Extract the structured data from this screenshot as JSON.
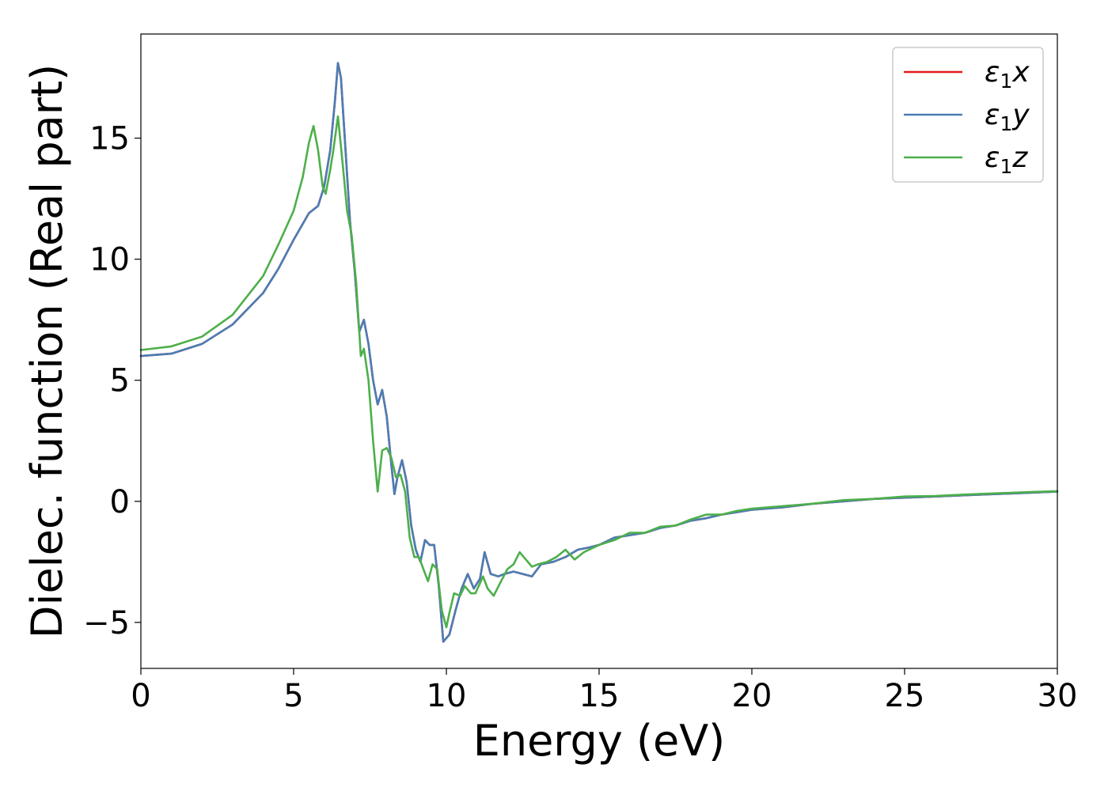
{
  "chart_data": {
    "type": "line",
    "xlabel": "Energy (eV)",
    "ylabel": "Dielec. function (Real part)",
    "xlim": [
      0,
      30
    ],
    "ylim": [
      -6.9,
      19.3
    ],
    "xticks": [
      0,
      5,
      10,
      15,
      20,
      25,
      30
    ],
    "xtick_labels": [
      "0",
      "5",
      "10",
      "15",
      "20",
      "25",
      "30"
    ],
    "yticks": [
      -5,
      0,
      5,
      10,
      15
    ],
    "ytick_labels": [
      "−5",
      "0",
      "5",
      "10",
      "15"
    ],
    "grid": false,
    "legend_position": "top-right",
    "series": [
      {
        "name": "ε1x",
        "legend": {
          "base": "ε",
          "sub": "1",
          "tail": "x"
        },
        "color": "#e41a1c",
        "points": [
          [
            0,
            6.0
          ],
          [
            1,
            6.1
          ],
          [
            2,
            6.5
          ],
          [
            3,
            7.3
          ],
          [
            4,
            8.6
          ],
          [
            4.5,
            9.6
          ],
          [
            5,
            10.8
          ],
          [
            5.5,
            11.9
          ],
          [
            5.8,
            12.2
          ],
          [
            6.0,
            13.0
          ],
          [
            6.2,
            14.5
          ],
          [
            6.35,
            16.5
          ],
          [
            6.45,
            18.1
          ],
          [
            6.55,
            17.5
          ],
          [
            6.7,
            14.5
          ],
          [
            6.85,
            11.5
          ],
          [
            7.0,
            9.5
          ],
          [
            7.15,
            7.0
          ],
          [
            7.3,
            7.5
          ],
          [
            7.45,
            6.5
          ],
          [
            7.6,
            5.0
          ],
          [
            7.75,
            4.0
          ],
          [
            7.9,
            4.6
          ],
          [
            8.05,
            3.5
          ],
          [
            8.2,
            1.5
          ],
          [
            8.3,
            0.3
          ],
          [
            8.4,
            1.0
          ],
          [
            8.55,
            1.7
          ],
          [
            8.7,
            0.8
          ],
          [
            8.85,
            -1.0
          ],
          [
            9.0,
            -2.0
          ],
          [
            9.15,
            -2.5
          ],
          [
            9.3,
            -1.6
          ],
          [
            9.45,
            -1.8
          ],
          [
            9.6,
            -1.8
          ],
          [
            9.75,
            -3.5
          ],
          [
            9.9,
            -5.8
          ],
          [
            10.1,
            -5.5
          ],
          [
            10.3,
            -4.5
          ],
          [
            10.5,
            -3.6
          ],
          [
            10.7,
            -3.0
          ],
          [
            10.9,
            -3.6
          ],
          [
            11.1,
            -3.2
          ],
          [
            11.25,
            -2.1
          ],
          [
            11.45,
            -3.0
          ],
          [
            11.7,
            -3.1
          ],
          [
            11.9,
            -3.0
          ],
          [
            12.2,
            -2.9
          ],
          [
            12.5,
            -3.0
          ],
          [
            12.8,
            -3.1
          ],
          [
            13.1,
            -2.6
          ],
          [
            13.5,
            -2.5
          ],
          [
            13.9,
            -2.3
          ],
          [
            14.3,
            -2.0
          ],
          [
            14.7,
            -1.9
          ],
          [
            15.0,
            -1.8
          ],
          [
            15.5,
            -1.5
          ],
          [
            16.0,
            -1.4
          ],
          [
            16.5,
            -1.3
          ],
          [
            17.0,
            -1.1
          ],
          [
            17.5,
            -1.0
          ],
          [
            18.0,
            -0.8
          ],
          [
            18.5,
            -0.7
          ],
          [
            19.0,
            -0.55
          ],
          [
            19.5,
            -0.45
          ],
          [
            20.0,
            -0.35
          ],
          [
            21.0,
            -0.25
          ],
          [
            22.0,
            -0.1
          ],
          [
            23.0,
            0.0
          ],
          [
            24.0,
            0.1
          ],
          [
            25.0,
            0.15
          ],
          [
            26.0,
            0.2
          ],
          [
            27.0,
            0.25
          ],
          [
            28.0,
            0.3
          ],
          [
            29.0,
            0.35
          ],
          [
            30.0,
            0.4
          ]
        ]
      },
      {
        "name": "ε1y",
        "legend": {
          "base": "ε",
          "sub": "1",
          "tail": "y"
        },
        "color": "#4a7eb5",
        "points": [
          [
            0,
            6.0
          ],
          [
            1,
            6.1
          ],
          [
            2,
            6.5
          ],
          [
            3,
            7.3
          ],
          [
            4,
            8.6
          ],
          [
            4.5,
            9.6
          ],
          [
            5,
            10.8
          ],
          [
            5.5,
            11.9
          ],
          [
            5.8,
            12.2
          ],
          [
            6.0,
            13.0
          ],
          [
            6.2,
            14.5
          ],
          [
            6.35,
            16.5
          ],
          [
            6.45,
            18.1
          ],
          [
            6.55,
            17.5
          ],
          [
            6.7,
            14.5
          ],
          [
            6.85,
            11.5
          ],
          [
            7.0,
            9.5
          ],
          [
            7.15,
            7.0
          ],
          [
            7.3,
            7.5
          ],
          [
            7.45,
            6.5
          ],
          [
            7.6,
            5.0
          ],
          [
            7.75,
            4.0
          ],
          [
            7.9,
            4.6
          ],
          [
            8.05,
            3.5
          ],
          [
            8.2,
            1.5
          ],
          [
            8.3,
            0.3
          ],
          [
            8.4,
            1.0
          ],
          [
            8.55,
            1.7
          ],
          [
            8.7,
            0.8
          ],
          [
            8.85,
            -1.0
          ],
          [
            9.0,
            -2.0
          ],
          [
            9.15,
            -2.5
          ],
          [
            9.3,
            -1.6
          ],
          [
            9.45,
            -1.8
          ],
          [
            9.6,
            -1.8
          ],
          [
            9.75,
            -3.5
          ],
          [
            9.9,
            -5.8
          ],
          [
            10.1,
            -5.5
          ],
          [
            10.3,
            -4.5
          ],
          [
            10.5,
            -3.6
          ],
          [
            10.7,
            -3.0
          ],
          [
            10.9,
            -3.6
          ],
          [
            11.1,
            -3.2
          ],
          [
            11.25,
            -2.1
          ],
          [
            11.45,
            -3.0
          ],
          [
            11.7,
            -3.1
          ],
          [
            11.9,
            -3.0
          ],
          [
            12.2,
            -2.9
          ],
          [
            12.5,
            -3.0
          ],
          [
            12.8,
            -3.1
          ],
          [
            13.1,
            -2.6
          ],
          [
            13.5,
            -2.5
          ],
          [
            13.9,
            -2.3
          ],
          [
            14.3,
            -2.0
          ],
          [
            14.7,
            -1.9
          ],
          [
            15.0,
            -1.8
          ],
          [
            15.5,
            -1.5
          ],
          [
            16.0,
            -1.4
          ],
          [
            16.5,
            -1.3
          ],
          [
            17.0,
            -1.1
          ],
          [
            17.5,
            -1.0
          ],
          [
            18.0,
            -0.8
          ],
          [
            18.5,
            -0.7
          ],
          [
            19.0,
            -0.55
          ],
          [
            19.5,
            -0.45
          ],
          [
            20.0,
            -0.35
          ],
          [
            21.0,
            -0.25
          ],
          [
            22.0,
            -0.1
          ],
          [
            23.0,
            0.0
          ],
          [
            24.0,
            0.1
          ],
          [
            25.0,
            0.15
          ],
          [
            26.0,
            0.2
          ],
          [
            27.0,
            0.25
          ],
          [
            28.0,
            0.3
          ],
          [
            29.0,
            0.35
          ],
          [
            30.0,
            0.4
          ]
        ]
      },
      {
        "name": "ε1z",
        "legend": {
          "base": "ε",
          "sub": "1",
          "tail": "z"
        },
        "color": "#4daf4a",
        "points": [
          [
            0,
            6.25
          ],
          [
            1,
            6.4
          ],
          [
            2,
            6.8
          ],
          [
            3,
            7.7
          ],
          [
            4,
            9.3
          ],
          [
            4.5,
            10.6
          ],
          [
            5,
            12.0
          ],
          [
            5.3,
            13.4
          ],
          [
            5.5,
            14.8
          ],
          [
            5.65,
            15.5
          ],
          [
            5.8,
            14.5
          ],
          [
            5.95,
            13.0
          ],
          [
            6.05,
            12.7
          ],
          [
            6.2,
            13.7
          ],
          [
            6.3,
            14.5
          ],
          [
            6.45,
            15.9
          ],
          [
            6.6,
            14.0
          ],
          [
            6.75,
            12.0
          ],
          [
            6.9,
            11.0
          ],
          [
            7.05,
            9.0
          ],
          [
            7.2,
            6.0
          ],
          [
            7.3,
            6.3
          ],
          [
            7.45,
            5.0
          ],
          [
            7.6,
            2.5
          ],
          [
            7.75,
            0.4
          ],
          [
            7.9,
            2.1
          ],
          [
            8.05,
            2.2
          ],
          [
            8.2,
            1.8
          ],
          [
            8.35,
            1.0
          ],
          [
            8.5,
            1.1
          ],
          [
            8.65,
            0.4
          ],
          [
            8.8,
            -1.5
          ],
          [
            8.95,
            -2.3
          ],
          [
            9.1,
            -2.3
          ],
          [
            9.25,
            -2.8
          ],
          [
            9.4,
            -3.3
          ],
          [
            9.55,
            -2.6
          ],
          [
            9.7,
            -2.8
          ],
          [
            9.85,
            -4.5
          ],
          [
            10.0,
            -5.2
          ],
          [
            10.1,
            -4.6
          ],
          [
            10.25,
            -3.8
          ],
          [
            10.45,
            -3.9
          ],
          [
            10.6,
            -3.5
          ],
          [
            10.8,
            -3.8
          ],
          [
            10.95,
            -3.8
          ],
          [
            11.2,
            -3.1
          ],
          [
            11.35,
            -3.6
          ],
          [
            11.55,
            -3.9
          ],
          [
            11.75,
            -3.4
          ],
          [
            12.0,
            -2.8
          ],
          [
            12.2,
            -2.6
          ],
          [
            12.4,
            -2.1
          ],
          [
            12.6,
            -2.4
          ],
          [
            12.8,
            -2.7
          ],
          [
            13.0,
            -2.6
          ],
          [
            13.3,
            -2.5
          ],
          [
            13.6,
            -2.3
          ],
          [
            13.9,
            -2.0
          ],
          [
            14.2,
            -2.4
          ],
          [
            14.5,
            -2.1
          ],
          [
            15.0,
            -1.8
          ],
          [
            15.5,
            -1.6
          ],
          [
            16.0,
            -1.3
          ],
          [
            16.5,
            -1.3
          ],
          [
            17.0,
            -1.05
          ],
          [
            17.5,
            -1.0
          ],
          [
            18.0,
            -0.75
          ],
          [
            18.5,
            -0.55
          ],
          [
            19.0,
            -0.55
          ],
          [
            19.5,
            -0.4
          ],
          [
            20.0,
            -0.3
          ],
          [
            21.0,
            -0.2
          ],
          [
            22.0,
            -0.1
          ],
          [
            23.0,
            0.05
          ],
          [
            24.0,
            0.1
          ],
          [
            25.0,
            0.2
          ],
          [
            26.0,
            0.22
          ],
          [
            27.0,
            0.28
          ],
          [
            28.0,
            0.33
          ],
          [
            29.0,
            0.38
          ],
          [
            30.0,
            0.42
          ]
        ]
      }
    ]
  }
}
